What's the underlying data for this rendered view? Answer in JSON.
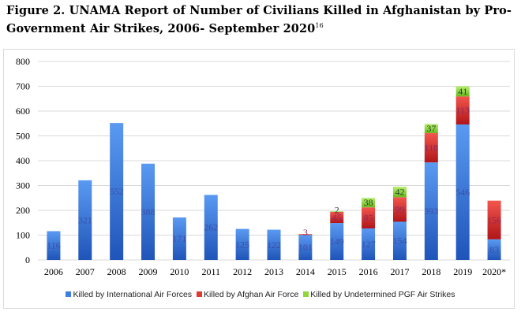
{
  "title": {
    "text": "Figure 2. UNAMA Report of Number of Civilians Killed in Afghanistan by Pro-Government Air Strikes, 2006- September 2020",
    "footnote": "16"
  },
  "chart_data": {
    "type": "bar",
    "stacked": true,
    "categories": [
      "2006",
      "2007",
      "2008",
      "2009",
      "2010",
      "2011",
      "2012",
      "2013",
      "2014",
      "2015",
      "2016",
      "2017",
      "2018",
      "2019",
      "2020*"
    ],
    "series": [
      {
        "name": "Killed by International Air Forces",
        "color": "#3f7fe0",
        "values": [
          116,
          321,
          552,
          388,
          171,
          262,
          125,
          122,
          101,
          149,
          127,
          154,
          393,
          546,
          83
        ],
        "labels": [
          "116",
          "321",
          "552",
          "388",
          "171",
          "262",
          "125",
          "122",
          "101",
          "149",
          "127",
          "154",
          "393",
          "546",
          "83"
        ]
      },
      {
        "name": "Killed by Afghan Air Force",
        "color": "#e03a32",
        "values": [
          0,
          0,
          0,
          0,
          0,
          0,
          0,
          0,
          3,
          45,
          85,
          99,
          118,
          113,
          156
        ],
        "labels": [
          "",
          "",
          "",
          "",
          "",
          "",
          "",
          "",
          "3",
          "45",
          "85",
          "99",
          "118",
          "113",
          "156"
        ]
      },
      {
        "name": "Killed by Undetermined PGF Air Strikes",
        "color": "#8ed63a",
        "values": [
          0,
          0,
          0,
          0,
          0,
          0,
          0,
          0,
          0,
          2,
          38,
          42,
          37,
          41,
          0
        ],
        "labels": [
          "",
          "",
          "",
          "",
          "",
          "",
          "",
          "",
          "",
          "2",
          "38",
          "42",
          "37",
          "41",
          ""
        ]
      }
    ],
    "ylim": [
      0,
      800
    ],
    "yticks": [
      0,
      100,
      200,
      300,
      400,
      500,
      600,
      700,
      800
    ],
    "grid": true,
    "legend_position": "bottom"
  }
}
